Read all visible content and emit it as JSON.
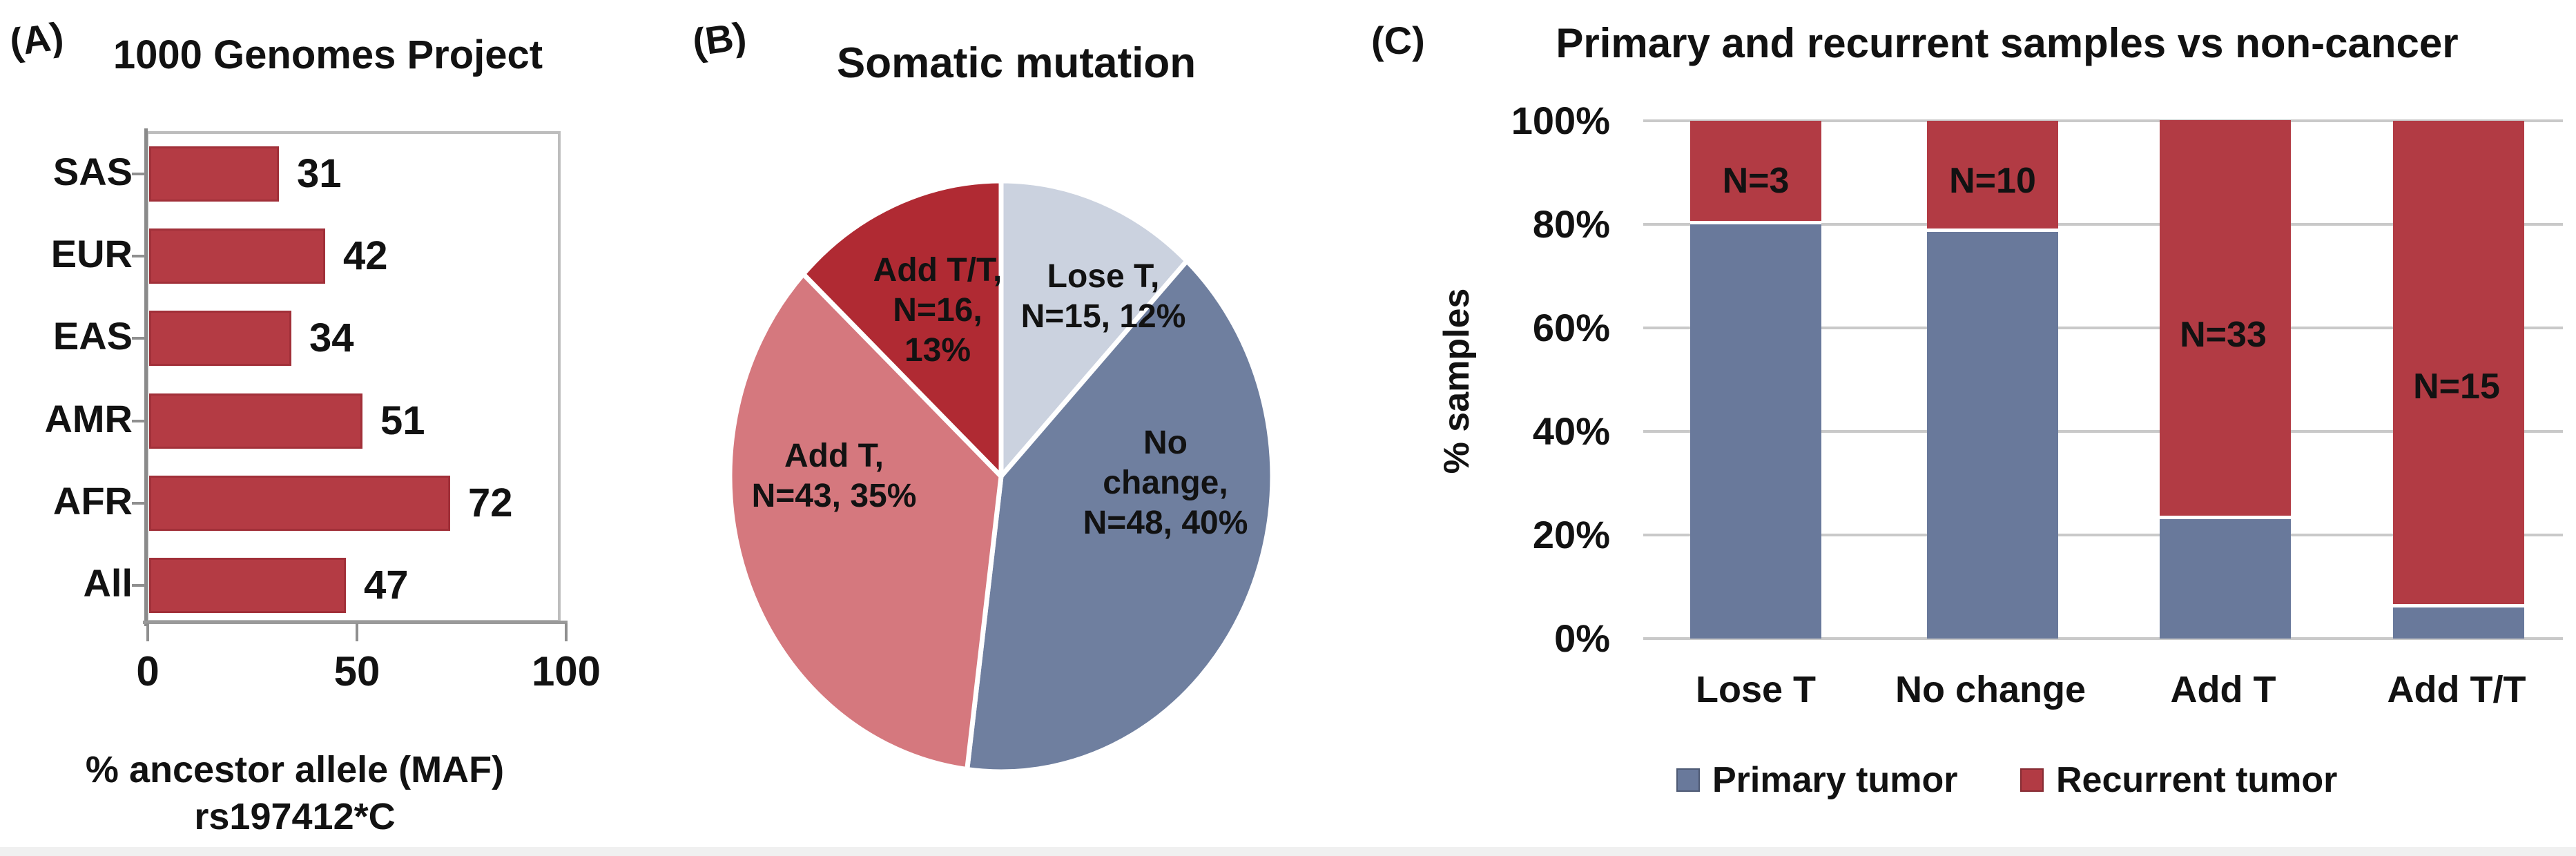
{
  "figure": {
    "bottom_strip_color": "#f0f0f0",
    "text_color": "#121212"
  },
  "panel_a": {
    "tag": "(A)",
    "title": "1000 Genomes Project",
    "xlabel_line1": "% ancestor allele (MAF)",
    "xlabel_line2": "rs197412*C",
    "chart_data": {
      "type": "bar",
      "orientation": "horizontal",
      "categories": [
        "SAS",
        "EUR",
        "EAS",
        "AMR",
        "AFR",
        "All"
      ],
      "values": [
        31,
        42,
        34,
        51,
        72,
        47
      ],
      "title": "1000 Genomes Project",
      "xlabel": "% ancestor allele (MAF) rs197412*C",
      "ylabel": "",
      "xlim": [
        0,
        100
      ],
      "xticks": [
        "0",
        "50",
        "100"
      ],
      "xtick_values": [
        0,
        50,
        100
      ],
      "bar_color": "#b43b44",
      "grid": false
    }
  },
  "panel_b": {
    "tag": "(B)",
    "title": "Somatic mutation",
    "chart_data": {
      "type": "pie",
      "title": "Somatic mutation",
      "start_angle_deg": 0,
      "direction": "clockwise",
      "slices": [
        {
          "name": "Lose T",
          "n": 15,
          "pct": 12,
          "color": "#cbd2df",
          "label_lines": [
            "Lose T,",
            "N=15, 12%"
          ]
        },
        {
          "name": "No change",
          "n": 48,
          "pct": 40,
          "color": "#6f7f9f",
          "label_lines": [
            "No",
            "change,",
            "N=48, 40%"
          ]
        },
        {
          "name": "Add T",
          "n": 43,
          "pct": 35,
          "color": "#d5787e",
          "label_lines": [
            "Add T,",
            "N=43, 35%"
          ]
        },
        {
          "name": "Add T/T",
          "n": 16,
          "pct": 13,
          "color": "#b02a33",
          "label_lines": [
            "Add T/T,",
            "N=16,",
            "13%"
          ]
        }
      ]
    }
  },
  "panel_c": {
    "tag": "(C)",
    "title": "Primary and recurrent samples vs non-cancer",
    "ylabel": "% samples",
    "chart_data": {
      "type": "bar",
      "subtype": "stacked-percent",
      "title": "Primary and recurrent samples vs non-cancer",
      "ylabel": "% samples",
      "categories": [
        "Lose T",
        "No change",
        "Add T",
        "Add T/T"
      ],
      "series": [
        {
          "name": "Primary tumor",
          "color": "#69799b",
          "values": [
            80,
            78.5,
            23,
            6
          ]
        },
        {
          "name": "Recurrent tumor",
          "color": "#b23b44",
          "values": [
            20,
            21.5,
            77,
            94
          ]
        }
      ],
      "bar_labels": [
        "N=3",
        "N=10",
        "N=33",
        "N=15"
      ],
      "bar_label_series": "Recurrent tumor",
      "ylim": [
        0,
        100
      ],
      "yticks": [
        "100%",
        "80%",
        "60%",
        "40%",
        "20%",
        "0%"
      ],
      "ytick_values": [
        100,
        80,
        60,
        40,
        20,
        0
      ],
      "grid": true,
      "legend_position": "bottom"
    },
    "legend": [
      {
        "label": "Primary tumor",
        "color": "#69799b"
      },
      {
        "label": "Recurrent tumor",
        "color": "#b23b44"
      }
    ]
  }
}
